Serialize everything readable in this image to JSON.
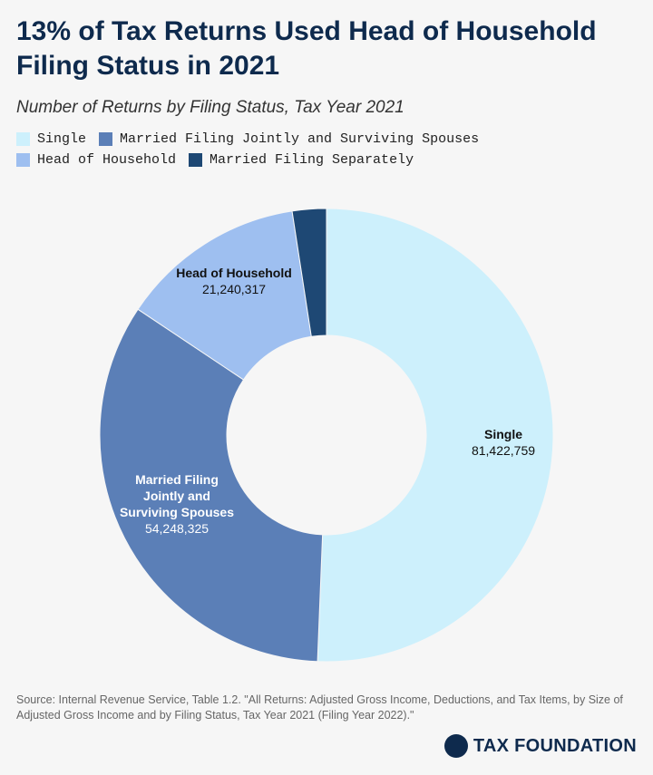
{
  "chart_data": {
    "type": "donut",
    "title": "13% of Tax Returns Used Head of Household Filing Status in 2021",
    "subtitle": "Number of Returns by Filing Status, Tax Year 2021",
    "categories": [
      "Single",
      "Married Filing Jointly and Surviving Spouses",
      "Head of Household",
      "Married Filing Separately"
    ],
    "values": [
      81422759,
      54248325,
      21240317,
      3900000
    ],
    "value_labels": [
      "81,422,759",
      "54,248,325",
      "21,240,317",
      null
    ],
    "colors": [
      "#cdf0fc",
      "#5b7fb7",
      "#9ebff0",
      "#1e4874"
    ],
    "label_colors": [
      "#111111",
      "#ffffff",
      "#111111",
      null
    ],
    "source": "Source: Internal Revenue Service, Table 1.2. \"All Returns: Adjusted Gross Income, Deductions, and Tax Items, by Size of Adjusted Gross Income and by Filing Status, Tax Year 2021 (Filing Year 2022).\"",
    "brand": "TAX FOUNDATION"
  }
}
